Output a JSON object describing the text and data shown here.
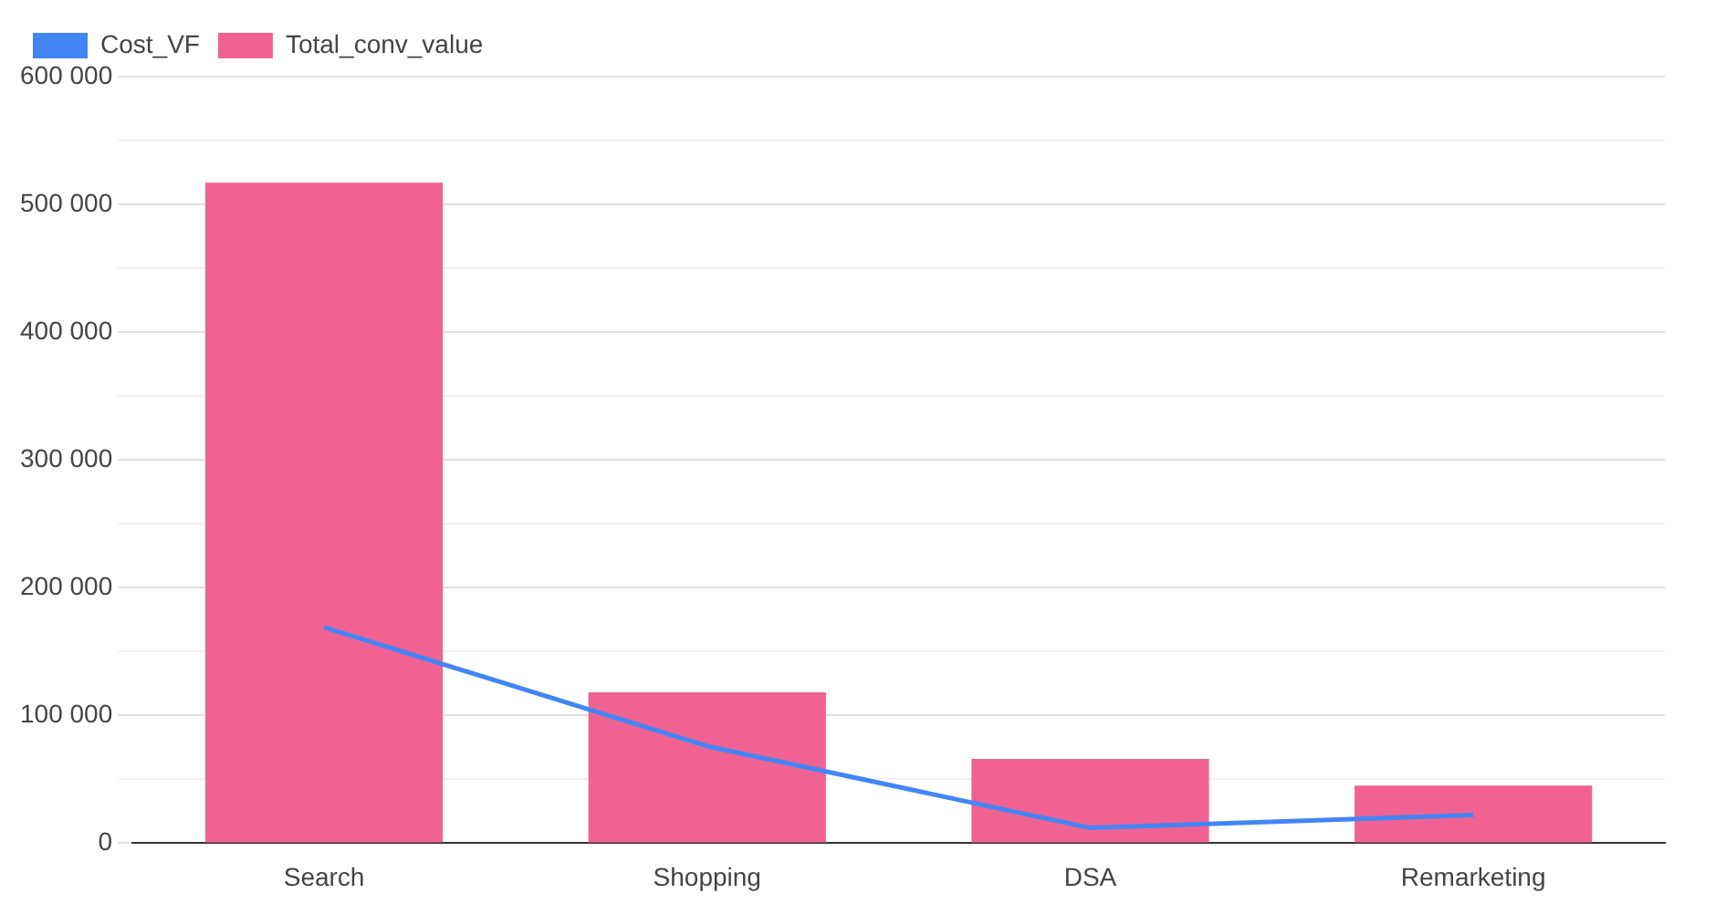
{
  "chart_data": {
    "type": "bar",
    "categories": [
      "Search",
      "Shopping",
      "DSA",
      "Remarketing"
    ],
    "series": [
      {
        "name": "Cost_VF",
        "type": "line",
        "color": "#4285f4",
        "values": [
          169000,
          76000,
          12000,
          22000
        ]
      },
      {
        "name": "Total_conv_value",
        "color": "#f06292",
        "values": [
          517000,
          118000,
          66000,
          45000
        ]
      }
    ],
    "ylim": [
      0,
      600000
    ],
    "yticks": [
      {
        "value": 0,
        "label": "0"
      },
      {
        "value": 50000,
        "label": null
      },
      {
        "value": 100000,
        "label": "100 000"
      },
      {
        "value": 150000,
        "label": null
      },
      {
        "value": 200000,
        "label": "200 000"
      },
      {
        "value": 250000,
        "label": null
      },
      {
        "value": 300000,
        "label": "300 000"
      },
      {
        "value": 350000,
        "label": null
      },
      {
        "value": 400000,
        "label": "400 000"
      },
      {
        "value": 450000,
        "label": null
      },
      {
        "value": 500000,
        "label": "500 000"
      },
      {
        "value": 550000,
        "label": null
      },
      {
        "value": 600000,
        "label": "600 000"
      }
    ],
    "grid": "y",
    "legend": "top left",
    "marker": "none"
  }
}
